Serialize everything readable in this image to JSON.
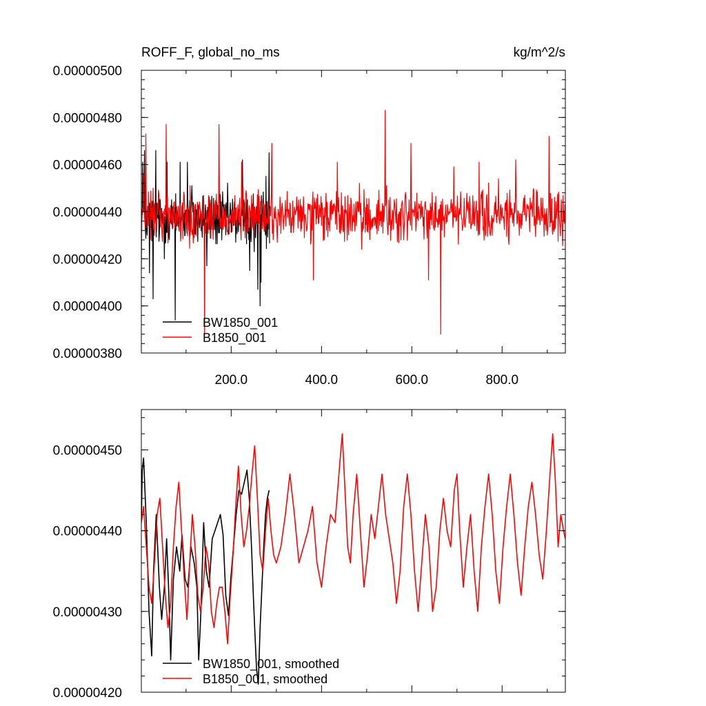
{
  "chart_data": [
    {
      "type": "line",
      "title": "ROFF_F, global_no_ms",
      "units": "kg/m^2/s",
      "xlim": [
        1,
        940
      ],
      "ylim": [
        3.8e-06,
        5e-06
      ],
      "x_ticks": [
        "200.0",
        "400.0",
        "600.0",
        "800.0"
      ],
      "y_ticks": [
        "0.00000380",
        "0.00000400",
        "0.00000420",
        "0.00000440",
        "0.00000460",
        "0.00000480",
        "0.00000500"
      ],
      "legend": "bottom-left",
      "series": [
        {
          "name": "BW1850_001",
          "color": "#000000",
          "x_range": [
            1,
            285
          ],
          "mean": 4.37e-06,
          "amplitude": 1.6e-07,
          "points": [
            [
              1,
              4.38e-06
            ],
            [
              2,
              4.41e-06
            ],
            [
              4,
              4.61e-06
            ],
            [
              8,
              4.66e-06
            ],
            [
              14,
              4.3e-06
            ],
            [
              19,
              4.14e-06
            ],
            [
              27,
              4.03e-06
            ],
            [
              33,
              4.66e-06
            ],
            [
              52,
              4.2e-06
            ],
            [
              58,
              4.61e-06
            ],
            [
              76,
              3.94e-06
            ],
            [
              87,
              4.61e-06
            ],
            [
              103,
              4.61e-06
            ],
            [
              113,
              4.51e-06
            ],
            [
              146,
              4.17e-06
            ],
            [
              179,
              4.28e-06
            ],
            [
              225,
              4.62e-06
            ],
            [
              241,
              4.15e-06
            ],
            [
              251,
              4.23e-06
            ],
            [
              259,
              4.07e-06
            ],
            [
              264,
              4e-06
            ],
            [
              266,
              4.1e-06
            ],
            [
              277,
              4.55e-06
            ],
            [
              284,
              4.65e-06
            ]
          ]
        },
        {
          "name": "B1850_001",
          "color": "#ff0000",
          "x_range": [
            1,
            940
          ],
          "mean": 4.38e-06,
          "amplitude": 1.4e-07,
          "points": [
            [
              1,
              4.15e-06
            ],
            [
              6,
              4.56e-06
            ],
            [
              11,
              4.73e-06
            ],
            [
              40,
              4.47e-06
            ],
            [
              56,
              4.77e-06
            ],
            [
              109,
              4.51e-06
            ],
            [
              141,
              3.88e-06
            ],
            [
              173,
              4.77e-06
            ],
            [
              223,
              4.61e-06
            ],
            [
              290,
              4.69e-06
            ],
            [
              382,
              4.11e-06
            ],
            [
              435,
              4.61e-06
            ],
            [
              489,
              4.24e-06
            ],
            [
              541,
              4.83e-06
            ],
            [
              544,
              4.51e-06
            ],
            [
              598,
              4.69e-06
            ],
            [
              637,
              4.11e-06
            ],
            [
              664,
              3.88e-06
            ],
            [
              693,
              4.59e-06
            ],
            [
              749,
              4.61e-06
            ],
            [
              792,
              4.54e-06
            ],
            [
              830,
              4.62e-06
            ],
            [
              904,
              4.72e-06
            ],
            [
              938,
              4.35e-06
            ]
          ]
        }
      ]
    },
    {
      "type": "line",
      "xlim": [
        1,
        940
      ],
      "ylim": [
        4.2e-06,
        4.55e-06
      ],
      "x_ticks": [],
      "y_ticks": [
        "0.00000420",
        "0.00000430",
        "0.00000440",
        "0.00000450"
      ],
      "legend": "bottom-left",
      "series": [
        {
          "name": "BW1850_001, smoothed",
          "color": "#000000",
          "points": [
            [
              1,
              4.41e-06
            ],
            [
              3,
              4.475e-06
            ],
            [
              6,
              4.49e-06
            ],
            [
              12,
              4.41e-06
            ],
            [
              18,
              4.3e-06
            ],
            [
              24,
              4.245e-06
            ],
            [
              28,
              4.35e-06
            ],
            [
              34,
              4.42e-06
            ],
            [
              41,
              4.33e-06
            ],
            [
              46,
              4.29e-06
            ],
            [
              52,
              4.33e-06
            ],
            [
              57,
              4.39e-06
            ],
            [
              62,
              4.32e-06
            ],
            [
              66,
              4.24e-06
            ],
            [
              72,
              4.34e-06
            ],
            [
              79,
              4.38e-06
            ],
            [
              86,
              4.35e-06
            ],
            [
              91,
              4.395e-06
            ],
            [
              98,
              4.34e-06
            ],
            [
              104,
              4.33e-06
            ],
            [
              111,
              4.38e-06
            ],
            [
              118,
              4.36e-06
            ],
            [
              124,
              4.33e-06
            ],
            [
              128,
              4.24e-06
            ],
            [
              133,
              4.3e-06
            ],
            [
              139,
              4.41e-06
            ],
            [
              145,
              4.35e-06
            ],
            [
              151,
              4.33e-06
            ],
            [
              158,
              4.39e-06
            ],
            [
              164,
              4.4e-06
            ],
            [
              170,
              4.41e-06
            ],
            [
              176,
              4.42e-06
            ],
            [
              182,
              4.395e-06
            ],
            [
              188,
              4.32e-06
            ],
            [
              194,
              4.295e-06
            ],
            [
              199,
              4.34e-06
            ],
            [
              205,
              4.38e-06
            ],
            [
              211,
              4.42e-06
            ],
            [
              217,
              4.45e-06
            ],
            [
              223,
              4.445e-06
            ],
            [
              229,
              4.46e-06
            ],
            [
              235,
              4.475e-06
            ],
            [
              240,
              4.44e-06
            ],
            [
              245,
              4.38e-06
            ],
            [
              249,
              4.32e-06
            ],
            [
              252,
              4.28e-06
            ],
            [
              256,
              4.23e-06
            ],
            [
              260,
              4.21e-06
            ],
            [
              264,
              4.28e-06
            ],
            [
              268,
              4.33e-06
            ],
            [
              272,
              4.38e-06
            ],
            [
              276,
              4.42e-06
            ],
            [
              280,
              4.44e-06
            ],
            [
              284,
              4.45e-06
            ]
          ]
        },
        {
          "name": "B1850_001, smoothed",
          "color": "#ff0000",
          "points": [
            [
              1,
              4.41e-06
            ],
            [
              6,
              4.43e-06
            ],
            [
              12,
              4.38e-06
            ],
            [
              18,
              4.33e-06
            ],
            [
              24,
              4.31e-06
            ],
            [
              30,
              4.36e-06
            ],
            [
              36,
              4.42e-06
            ],
            [
              42,
              4.44e-06
            ],
            [
              48,
              4.38e-06
            ],
            [
              54,
              4.32e-06
            ],
            [
              60,
              4.28e-06
            ],
            [
              66,
              4.31e-06
            ],
            [
              72,
              4.38e-06
            ],
            [
              78,
              4.43e-06
            ],
            [
              84,
              4.46e-06
            ],
            [
              90,
              4.4e-06
            ],
            [
              96,
              4.34e-06
            ],
            [
              102,
              4.29e-06
            ],
            [
              108,
              4.36e-06
            ],
            [
              114,
              4.42e-06
            ],
            [
              120,
              4.38e-06
            ],
            [
              126,
              4.32e-06
            ],
            [
              132,
              4.3e-06
            ],
            [
              138,
              4.33e-06
            ],
            [
              144,
              4.38e-06
            ],
            [
              150,
              4.36e-06
            ],
            [
              156,
              4.3e-06
            ],
            [
              162,
              4.28e-06
            ],
            [
              168,
              4.31e-06
            ],
            [
              174,
              4.33e-06
            ],
            [
              180,
              4.33e-06
            ],
            [
              186,
              4.3e-06
            ],
            [
              192,
              4.26e-06
            ],
            [
              198,
              4.32e-06
            ],
            [
              204,
              4.37e-06
            ],
            [
              210,
              4.43e-06
            ],
            [
              216,
              4.48e-06
            ],
            [
              222,
              4.42e-06
            ],
            [
              228,
              4.38e-06
            ],
            [
              234,
              4.4e-06
            ],
            [
              240,
              4.43e-06
            ],
            [
              246,
              4.47e-06
            ],
            [
              252,
              4.505e-06
            ],
            [
              258,
              4.44e-06
            ],
            [
              264,
              4.37e-06
            ],
            [
              270,
              4.35e-06
            ],
            [
              276,
              4.4e-06
            ],
            [
              282,
              4.44e-06
            ],
            [
              288,
              4.4e-06
            ],
            [
              294,
              4.37e-06
            ],
            [
              300,
              4.36e-06
            ],
            [
              310,
              4.38e-06
            ],
            [
              320,
              4.42e-06
            ],
            [
              330,
              4.47e-06
            ],
            [
              340,
              4.42e-06
            ],
            [
              350,
              4.36e-06
            ],
            [
              360,
              4.38e-06
            ],
            [
              370,
              4.4e-06
            ],
            [
              380,
              4.43e-06
            ],
            [
              390,
              4.36e-06
            ],
            [
              400,
              4.33e-06
            ],
            [
              410,
              4.38e-06
            ],
            [
              420,
              4.42e-06
            ],
            [
              430,
              4.41e-06
            ],
            [
              440,
              4.48e-06
            ],
            [
              446,
              4.52e-06
            ],
            [
              452,
              4.45e-06
            ],
            [
              458,
              4.38e-06
            ],
            [
              464,
              4.36e-06
            ],
            [
              470,
              4.42e-06
            ],
            [
              478,
              4.47e-06
            ],
            [
              486,
              4.4e-06
            ],
            [
              494,
              4.33e-06
            ],
            [
              502,
              4.37e-06
            ],
            [
              510,
              4.42e-06
            ],
            [
              518,
              4.39e-06
            ],
            [
              526,
              4.43e-06
            ],
            [
              534,
              4.47e-06
            ],
            [
              542,
              4.42e-06
            ],
            [
              550,
              4.39e-06
            ],
            [
              558,
              4.36e-06
            ],
            [
              566,
              4.31e-06
            ],
            [
              574,
              4.35e-06
            ],
            [
              582,
              4.43e-06
            ],
            [
              590,
              4.47e-06
            ],
            [
              598,
              4.42e-06
            ],
            [
              606,
              4.35e-06
            ],
            [
              614,
              4.3e-06
            ],
            [
              622,
              4.36e-06
            ],
            [
              630,
              4.42e-06
            ],
            [
              638,
              4.38e-06
            ],
            [
              646,
              4.3e-06
            ],
            [
              654,
              4.33e-06
            ],
            [
              662,
              4.4e-06
            ],
            [
              670,
              4.44e-06
            ],
            [
              678,
              4.4e-06
            ],
            [
              686,
              4.38e-06
            ],
            [
              694,
              4.45e-06
            ],
            [
              700,
              4.47e-06
            ],
            [
              706,
              4.4e-06
            ],
            [
              714,
              4.33e-06
            ],
            [
              722,
              4.38e-06
            ],
            [
              730,
              4.42e-06
            ],
            [
              738,
              4.35e-06
            ],
            [
              746,
              4.3e-06
            ],
            [
              754,
              4.38e-06
            ],
            [
              762,
              4.43e-06
            ],
            [
              770,
              4.47e-06
            ],
            [
              778,
              4.42e-06
            ],
            [
              786,
              4.35e-06
            ],
            [
              794,
              4.31e-06
            ],
            [
              802,
              4.38e-06
            ],
            [
              810,
              4.43e-06
            ],
            [
              818,
              4.47e-06
            ],
            [
              826,
              4.42e-06
            ],
            [
              834,
              4.36e-06
            ],
            [
              842,
              4.32e-06
            ],
            [
              850,
              4.38e-06
            ],
            [
              858,
              4.43e-06
            ],
            [
              866,
              4.46e-06
            ],
            [
              874,
              4.42e-06
            ],
            [
              882,
              4.37e-06
            ],
            [
              890,
              4.34e-06
            ],
            [
              898,
              4.4e-06
            ],
            [
              906,
              4.47e-06
            ],
            [
              912,
              4.52e-06
            ],
            [
              918,
              4.46e-06
            ],
            [
              924,
              4.38e-06
            ],
            [
              930,
              4.42e-06
            ],
            [
              936,
              4.4e-06
            ],
            [
              940,
              4.39e-06
            ]
          ]
        }
      ]
    }
  ]
}
